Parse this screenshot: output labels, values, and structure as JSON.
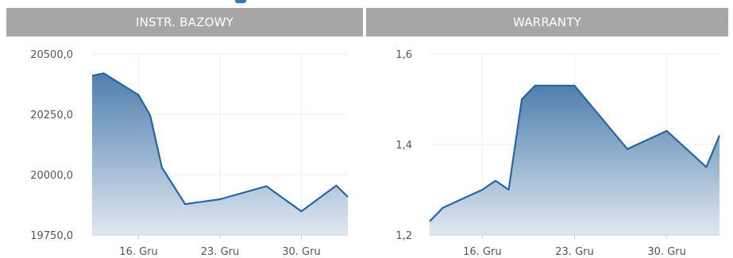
{
  "tabs": {
    "left": "INSTR. BAZOWY",
    "right": "WARRANTY"
  },
  "colors": {
    "tab_bg": "#a6a6a6",
    "line": "#2566a5",
    "area_top": "#4f7fae",
    "area_bottom": "#dfe7f1",
    "grid": "#eeeeee"
  },
  "chart_data": [
    {
      "type": "area",
      "title": "INSTR. BAZOWY",
      "xlabel": "",
      "ylabel": "",
      "ylim": [
        19750,
        20500
      ],
      "xlim": [
        "2013-12-12",
        "2014-01-03"
      ],
      "yticks": [
        20500,
        20250,
        20000,
        19750
      ],
      "ytick_labels": [
        "20500,0",
        "20250,0",
        "20000,0",
        "19750,0"
      ],
      "xticks": [
        "2013-12-16",
        "2013-12-23",
        "2013-12-30"
      ],
      "xtick_labels": [
        "16. Gru",
        "23. Gru",
        "30. Gru"
      ],
      "grid": true,
      "series": [
        {
          "x": [
            "2013-12-12",
            "2013-12-13",
            "2013-12-16",
            "2013-12-17",
            "2013-12-18",
            "2013-12-20",
            "2013-12-23",
            "2013-12-27",
            "2013-12-30",
            "2014-01-02",
            "2014-01-03"
          ],
          "y": [
            20410,
            20420,
            20330,
            20245,
            20030,
            19878,
            19898,
            19952,
            19848,
            19955,
            19908
          ]
        }
      ]
    },
    {
      "type": "area",
      "title": "WARRANTY",
      "xlabel": "",
      "ylabel": "",
      "ylim": [
        1.2,
        1.6
      ],
      "xlim": [
        "2013-12-12",
        "2014-01-03"
      ],
      "yticks": [
        1.6,
        1.4,
        1.2
      ],
      "ytick_labels": [
        "1,6",
        "1,4",
        "1,2"
      ],
      "xticks": [
        "2013-12-16",
        "2013-12-23",
        "2013-12-30"
      ],
      "xtick_labels": [
        "16. Gru",
        "23. Gru",
        "30. Gru"
      ],
      "grid": true,
      "series": [
        {
          "x": [
            "2013-12-12",
            "2013-12-13",
            "2013-12-16",
            "2013-12-17",
            "2013-12-18",
            "2013-12-19",
            "2013-12-20",
            "2013-12-23",
            "2013-12-27",
            "2013-12-30",
            "2014-01-02",
            "2014-01-03"
          ],
          "y": [
            1.23,
            1.26,
            1.3,
            1.32,
            1.3,
            1.5,
            1.53,
            1.53,
            1.39,
            1.43,
            1.35,
            1.42
          ]
        }
      ]
    }
  ]
}
